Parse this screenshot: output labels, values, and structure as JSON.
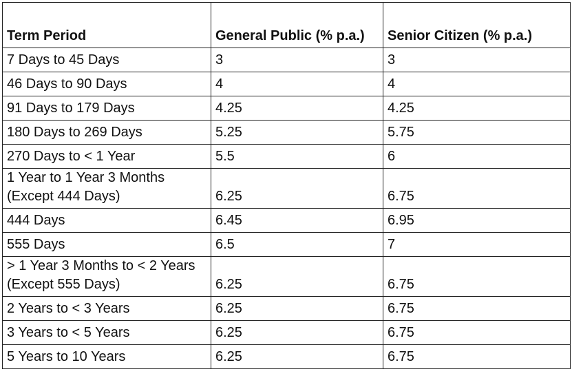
{
  "table": {
    "header": [
      "Term Period",
      "General Public (% p.a.)",
      "Senior Citizen (% p.a.)"
    ],
    "rows": [
      [
        "7 Days to 45 Days",
        "3",
        "3"
      ],
      [
        "46 Days to 90 Days",
        "4",
        "4"
      ],
      [
        "91 Days to 179 Days",
        "4.25",
        "4.25"
      ],
      [
        "180 Days to 269 Days",
        "5.25",
        "5.75"
      ],
      [
        "270 Days to < 1 Year",
        "5.5",
        "6"
      ],
      [
        "1 Year to 1 Year 3 Months (Except 444 Days)",
        "6.25",
        "6.75"
      ],
      [
        "444 Days",
        "6.45",
        "6.95"
      ],
      [
        "555 Days",
        "6.5",
        "7"
      ],
      [
        "> 1 Year 3 Months to < 2 Years (Except 555 Days)",
        "6.25",
        "6.75"
      ],
      [
        "2 Years to < 3 Years",
        "6.25",
        "6.75"
      ],
      [
        "3 Years to < 5 Years",
        "6.25",
        "6.75"
      ],
      [
        "5 Years to 10 Years",
        "6.25",
        "6.75"
      ]
    ]
  }
}
